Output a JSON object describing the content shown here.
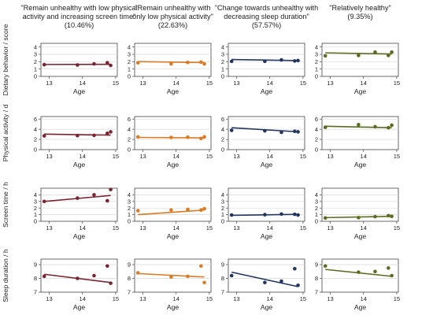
{
  "figure": {
    "columns": [
      {
        "title_lines": [
          "\"Remain unhealthy with low physical",
          "activity and increasing screen time\""
        ],
        "pct": "(10.46%)",
        "color": "#7a2330"
      },
      {
        "title_lines": [
          "\"Remain unhealthy with",
          "only low physical activity\""
        ],
        "pct": "(22.63%)",
        "color": "#d97a25"
      },
      {
        "title_lines": [
          "\"Change towards unhealthy with",
          "decreasing sleep duration\""
        ],
        "pct": "(57.57%)",
        "color": "#223560"
      },
      {
        "title_lines": [
          "\"Relatively healthy\""
        ],
        "pct": "(9.35%)",
        "color": "#5a6b1f"
      }
    ],
    "xlabel": "Age",
    "x_ticks": [
      13,
      14,
      15
    ],
    "xlim": [
      12.75,
      15.05
    ],
    "rows": [
      {
        "ylabel": "Dietary behavior / score",
        "ylim": [
          0,
          4.5
        ],
        "y_ticks": [
          0,
          1,
          2,
          3,
          4
        ]
      },
      {
        "ylabel": "Physical activity / d",
        "ylim": [
          0,
          6.5
        ],
        "y_ticks": [
          0,
          2,
          4,
          6
        ]
      },
      {
        "ylabel": "Screen time / h",
        "ylim": [
          0,
          5
        ],
        "y_ticks": [
          0,
          1,
          2,
          3,
          4
        ]
      },
      {
        "ylabel": "Sleep duration / h",
        "ylim": [
          7,
          9.4
        ],
        "y_ticks": [
          7,
          8,
          9
        ]
      }
    ]
  },
  "chart_data": [
    {
      "type": "scatter",
      "row": 0,
      "col": 0,
      "x": [
        12.85,
        13.85,
        14.35,
        14.75,
        14.85
      ],
      "y": [
        1.6,
        1.55,
        1.7,
        1.85,
        1.5
      ],
      "fit": [
        [
          12.85,
          1.62
        ],
        [
          14.85,
          1.64
        ]
      ]
    },
    {
      "type": "scatter",
      "row": 0,
      "col": 1,
      "x": [
        12.85,
        13.85,
        14.35,
        14.75,
        14.85
      ],
      "y": [
        1.85,
        1.7,
        1.9,
        1.95,
        1.7
      ],
      "fit": [
        [
          12.85,
          2.02
        ],
        [
          14.85,
          1.87
        ]
      ]
    },
    {
      "type": "scatter",
      "row": 0,
      "col": 2,
      "x": [
        12.85,
        13.85,
        14.35,
        14.75,
        14.85
      ],
      "y": [
        2.05,
        2.05,
        2.25,
        2.1,
        2.15
      ],
      "fit": [
        [
          12.85,
          2.3
        ],
        [
          14.85,
          2.15
        ]
      ]
    },
    {
      "type": "scatter",
      "row": 0,
      "col": 3,
      "x": [
        12.85,
        13.85,
        14.35,
        14.75,
        14.85
      ],
      "y": [
        2.8,
        2.85,
        3.3,
        2.85,
        3.3
      ],
      "fit": [
        [
          12.85,
          3.2
        ],
        [
          14.85,
          3.05
        ]
      ]
    },
    {
      "type": "scatter",
      "row": 1,
      "col": 0,
      "x": [
        12.85,
        13.85,
        14.35,
        14.75,
        14.85
      ],
      "y": [
        2.7,
        2.75,
        2.8,
        3.2,
        3.5
      ],
      "fit": [
        [
          12.85,
          3.05
        ],
        [
          14.85,
          2.85
        ]
      ]
    },
    {
      "type": "scatter",
      "row": 1,
      "col": 1,
      "x": [
        12.85,
        13.85,
        14.35,
        14.75,
        14.85
      ],
      "y": [
        2.5,
        2.4,
        2.45,
        2.2,
        2.5
      ],
      "fit": [
        [
          12.85,
          2.4
        ],
        [
          14.85,
          2.3
        ]
      ]
    },
    {
      "type": "scatter",
      "row": 1,
      "col": 2,
      "x": [
        12.85,
        13.85,
        14.35,
        14.75,
        14.85
      ],
      "y": [
        3.8,
        3.7,
        3.4,
        3.6,
        3.5
      ],
      "fit": [
        [
          12.85,
          4.3
        ],
        [
          14.85,
          3.5
        ]
      ]
    },
    {
      "type": "scatter",
      "row": 1,
      "col": 3,
      "x": [
        12.85,
        13.85,
        14.35,
        14.75,
        14.85
      ],
      "y": [
        4.4,
        4.9,
        4.5,
        4.3,
        4.8
      ],
      "fit": [
        [
          12.85,
          4.6
        ],
        [
          14.85,
          4.3
        ]
      ]
    },
    {
      "type": "scatter",
      "row": 2,
      "col": 0,
      "x": [
        12.85,
        13.85,
        14.35,
        14.75,
        14.85
      ],
      "y": [
        3.0,
        3.5,
        4.0,
        3.1,
        4.8
      ],
      "fit": [
        [
          12.85,
          3.0
        ],
        [
          14.85,
          3.9
        ]
      ]
    },
    {
      "type": "scatter",
      "row": 2,
      "col": 1,
      "x": [
        12.85,
        13.85,
        14.35,
        14.75,
        14.85
      ],
      "y": [
        1.6,
        1.7,
        1.8,
        1.7,
        1.9
      ],
      "fit": [
        [
          12.85,
          1.0
        ],
        [
          14.85,
          1.7
        ]
      ]
    },
    {
      "type": "scatter",
      "row": 2,
      "col": 2,
      "x": [
        12.85,
        13.85,
        14.35,
        14.75,
        14.85
      ],
      "y": [
        0.95,
        1.0,
        1.1,
        1.05,
        0.95
      ],
      "fit": [
        [
          12.85,
          0.9
        ],
        [
          14.85,
          1.05
        ]
      ]
    },
    {
      "type": "scatter",
      "row": 2,
      "col": 3,
      "x": [
        12.85,
        13.85,
        14.35,
        14.75,
        14.85
      ],
      "y": [
        0.5,
        0.55,
        0.7,
        0.85,
        0.75
      ],
      "fit": [
        [
          12.85,
          0.55
        ],
        [
          14.85,
          0.75
        ]
      ]
    },
    {
      "type": "scatter",
      "row": 3,
      "col": 0,
      "x": [
        12.85,
        13.85,
        14.35,
        14.75,
        14.85
      ],
      "y": [
        8.15,
        8.0,
        8.2,
        8.9,
        7.65
      ],
      "fit": [
        [
          12.85,
          8.3
        ],
        [
          14.85,
          7.7
        ]
      ]
    },
    {
      "type": "scatter",
      "row": 3,
      "col": 1,
      "x": [
        12.85,
        13.85,
        14.35,
        14.75,
        14.85
      ],
      "y": [
        8.4,
        8.1,
        8.15,
        8.9,
        7.7
      ],
      "fit": [
        [
          12.85,
          8.35
        ],
        [
          14.85,
          8.1
        ]
      ]
    },
    {
      "type": "scatter",
      "row": 3,
      "col": 2,
      "x": [
        12.85,
        13.85,
        14.35,
        14.75,
        14.85
      ],
      "y": [
        8.2,
        7.7,
        7.8,
        8.7,
        7.5
      ],
      "fit": [
        [
          12.85,
          8.45
        ],
        [
          14.85,
          7.4
        ]
      ]
    },
    {
      "type": "scatter",
      "row": 3,
      "col": 3,
      "x": [
        12.85,
        13.85,
        14.35,
        14.75,
        14.85
      ],
      "y": [
        8.9,
        8.45,
        8.5,
        8.75,
        8.2
      ],
      "fit": [
        [
          12.85,
          8.65
        ],
        [
          14.85,
          8.15
        ]
      ]
    }
  ]
}
